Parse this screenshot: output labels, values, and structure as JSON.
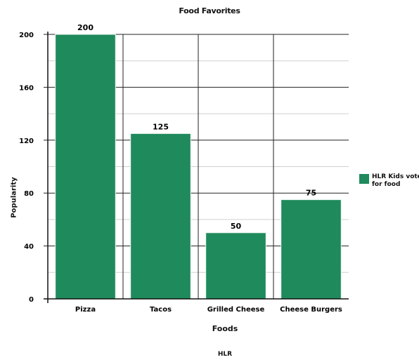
{
  "chart_data": {
    "type": "bar",
    "title": "Food Favorites",
    "xlabel": "Foods",
    "ylabel": "Popularity",
    "footer": "HLR",
    "categories": [
      "Pizza",
      "Tacos",
      "Grilled Cheese",
      "Cheese Burgers"
    ],
    "series": [
      {
        "name": "HLR Kids vote for food",
        "values": [
          200,
          125,
          50,
          75
        ]
      }
    ],
    "data_labels": [
      "200",
      "125",
      "50",
      "75"
    ],
    "ylim": [
      0,
      200
    ],
    "yticks": [
      0,
      40,
      80,
      120,
      160,
      200
    ],
    "ytick_labels": [
      "0",
      "40",
      "80",
      "120",
      "160",
      "200"
    ],
    "grid": true,
    "legend_position": "right",
    "bar_color": "#1f8a5b"
  }
}
